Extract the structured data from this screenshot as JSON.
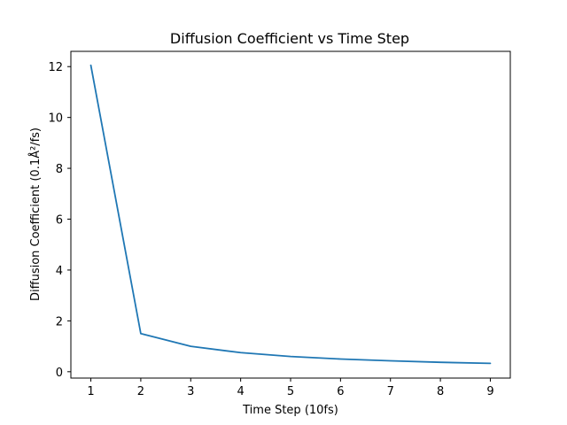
{
  "chart_data": {
    "type": "line",
    "title": "Diffusion Coefficient vs Time Step",
    "xlabel": "Time Step (10fs)",
    "ylabel": "Diffusion Coefficient (0.1Å²/fs)",
    "x": [
      1,
      2,
      3,
      4,
      5,
      6,
      7,
      8,
      9
    ],
    "series": [
      {
        "values": [
          12.05,
          1.5,
          1.0,
          0.75,
          0.6,
          0.5,
          0.43,
          0.37,
          0.33
        ],
        "color": "#1f77b4"
      }
    ],
    "xlim": [
      0.6,
      9.4
    ],
    "ylim": [
      -0.25,
      12.6
    ],
    "xticks": [
      1,
      2,
      3,
      4,
      5,
      6,
      7,
      8,
      9
    ],
    "yticks": [
      0,
      2,
      4,
      6,
      8,
      10,
      12
    ],
    "grid": false,
    "legend": false
  }
}
